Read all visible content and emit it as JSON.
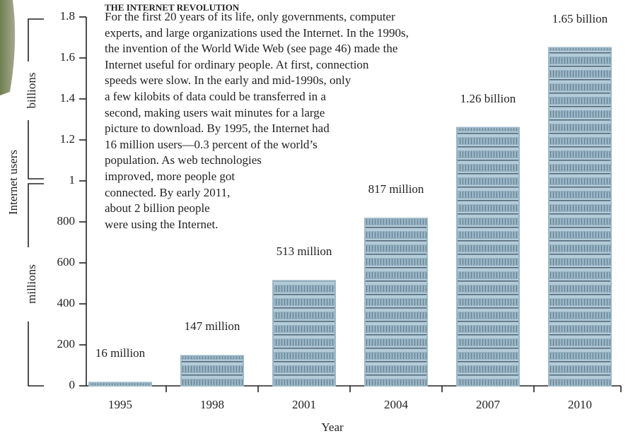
{
  "chart_data": {
    "type": "bar",
    "title": "THE INTERNET REVOLUTION",
    "text_lines": [
      "For the first 20 years of its life, only governments, computer",
      "experts, and large organizations used the Internet. In the 1990s,",
      "the invention of the World Wide Web (see page 46) made the",
      "Internet useful for ordinary people. At first, connection",
      "speeds were slow. In the early and mid-1990s, only",
      "a few kilobits of data could be transferred in a",
      "second, making users wait minutes for a large",
      "picture to download. By 1995, the Internet had",
      "16 million users—0.3 percent of the world’s",
      "population. As web technologies",
      "improved, more people got",
      "connected. By early 2011,",
      "about 2 billion people",
      "were using the Internet."
    ],
    "y_label": "Internet users",
    "y_label_lower": "millions",
    "y_label_upper": "billions",
    "x_label": "Year",
    "categories": [
      "1995",
      "1998",
      "2001",
      "2004",
      "2007",
      "2010"
    ],
    "values": [
      16,
      147,
      513,
      817,
      1260,
      1650
    ],
    "value_labels": [
      "16 million",
      "147 million",
      "513 million",
      "817 million",
      "1.26 billion",
      "1.65 billion"
    ],
    "color": "#b4cbd8",
    "ylim": [
      0,
      1800
    ],
    "yticks": [
      0,
      200,
      400,
      600,
      800,
      {
        "value": 1000,
        "label": "1"
      },
      {
        "value": 1200,
        "label": "1.2"
      },
      {
        "value": 1400,
        "label": "1.4"
      },
      {
        "value": 1600,
        "label": "1.6"
      },
      {
        "value": 1800,
        "label": "1.8"
      }
    ]
  }
}
